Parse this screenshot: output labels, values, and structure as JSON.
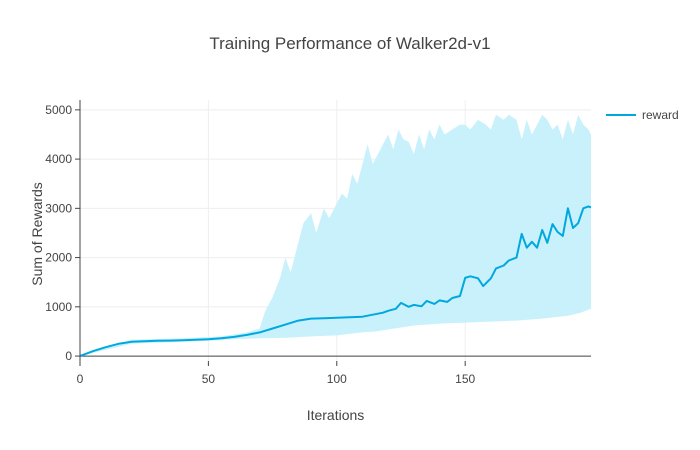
{
  "chart_data": {
    "type": "line",
    "title": "Training Performance of Walker2d-v1",
    "xlabel": "Iterations",
    "ylabel": "Sum of Rewards",
    "xlim": [
      0,
      199
    ],
    "ylim": [
      -100,
      5200
    ],
    "x_ticks": [
      0,
      50,
      100,
      150
    ],
    "y_ticks": [
      0,
      1000,
      2000,
      3000,
      4000,
      5000
    ],
    "x_tick_labels": [
      "0",
      "50",
      "100",
      "150"
    ],
    "y_tick_labels": [
      "0",
      "1000",
      "2000",
      "3000",
      "4000",
      "5000"
    ],
    "grid": true,
    "legend_position": "top-right",
    "series": [
      {
        "name": "reward",
        "color": "#00A8E0",
        "band_color": "#C9F1FB",
        "points": [
          [
            0,
            0
          ],
          [
            5,
            100
          ],
          [
            10,
            180
          ],
          [
            15,
            250
          ],
          [
            20,
            290
          ],
          [
            25,
            300
          ],
          [
            30,
            310
          ],
          [
            35,
            315
          ],
          [
            40,
            320
          ],
          [
            45,
            330
          ],
          [
            50,
            340
          ],
          [
            55,
            360
          ],
          [
            60,
            390
          ],
          [
            65,
            430
          ],
          [
            70,
            480
          ],
          [
            75,
            560
          ],
          [
            80,
            640
          ],
          [
            85,
            720
          ],
          [
            90,
            760
          ],
          [
            95,
            770
          ],
          [
            100,
            780
          ],
          [
            105,
            790
          ],
          [
            110,
            800
          ],
          [
            112,
            820
          ],
          [
            115,
            850
          ],
          [
            118,
            880
          ],
          [
            120,
            920
          ],
          [
            123,
            960
          ],
          [
            125,
            1080
          ],
          [
            128,
            1000
          ],
          [
            130,
            1040
          ],
          [
            133,
            1010
          ],
          [
            135,
            1120
          ],
          [
            138,
            1060
          ],
          [
            140,
            1130
          ],
          [
            143,
            1100
          ],
          [
            145,
            1180
          ],
          [
            148,
            1220
          ],
          [
            150,
            1590
          ],
          [
            152,
            1620
          ],
          [
            155,
            1580
          ],
          [
            157,
            1420
          ],
          [
            160,
            1580
          ],
          [
            162,
            1780
          ],
          [
            165,
            1840
          ],
          [
            167,
            1940
          ],
          [
            170,
            2000
          ],
          [
            172,
            2480
          ],
          [
            174,
            2200
          ],
          [
            176,
            2320
          ],
          [
            178,
            2200
          ],
          [
            180,
            2560
          ],
          [
            182,
            2300
          ],
          [
            184,
            2680
          ],
          [
            186,
            2520
          ],
          [
            188,
            2440
          ],
          [
            190,
            3000
          ],
          [
            192,
            2600
          ],
          [
            194,
            2700
          ],
          [
            196,
            3000
          ],
          [
            198,
            3040
          ],
          [
            199,
            3020
          ]
        ],
        "band_upper": [
          [
            0,
            30
          ],
          [
            20,
            330
          ],
          [
            40,
            360
          ],
          [
            55,
            400
          ],
          [
            60,
            440
          ],
          [
            65,
            480
          ],
          [
            70,
            560
          ],
          [
            72,
            900
          ],
          [
            75,
            1200
          ],
          [
            78,
            1600
          ],
          [
            80,
            2000
          ],
          [
            82,
            1700
          ],
          [
            85,
            2300
          ],
          [
            87,
            2700
          ],
          [
            90,
            2900
          ],
          [
            92,
            2500
          ],
          [
            95,
            3000
          ],
          [
            97,
            2800
          ],
          [
            100,
            3100
          ],
          [
            102,
            3300
          ],
          [
            104,
            3200
          ],
          [
            106,
            3700
          ],
          [
            108,
            3500
          ],
          [
            110,
            3900
          ],
          [
            112,
            4300
          ],
          [
            114,
            3900
          ],
          [
            116,
            4100
          ],
          [
            118,
            4300
          ],
          [
            120,
            4500
          ],
          [
            122,
            4200
          ],
          [
            124,
            4600
          ],
          [
            126,
            4400
          ],
          [
            128,
            4350
          ],
          [
            130,
            4100
          ],
          [
            132,
            4500
          ],
          [
            134,
            4200
          ],
          [
            136,
            4600
          ],
          [
            138,
            4400
          ],
          [
            140,
            4700
          ],
          [
            142,
            4500
          ],
          [
            145,
            4600
          ],
          [
            148,
            4700
          ],
          [
            150,
            4700
          ],
          [
            152,
            4600
          ],
          [
            155,
            4800
          ],
          [
            158,
            4700
          ],
          [
            160,
            4600
          ],
          [
            162,
            4900
          ],
          [
            165,
            4800
          ],
          [
            167,
            4900
          ],
          [
            170,
            4800
          ],
          [
            172,
            4400
          ],
          [
            174,
            4800
          ],
          [
            176,
            4500
          ],
          [
            178,
            4700
          ],
          [
            180,
            4900
          ],
          [
            182,
            4800
          ],
          [
            184,
            4600
          ],
          [
            186,
            4700
          ],
          [
            188,
            4400
          ],
          [
            190,
            4800
          ],
          [
            192,
            4500
          ],
          [
            194,
            4900
          ],
          [
            196,
            4700
          ],
          [
            198,
            4600
          ],
          [
            199,
            4500
          ]
        ],
        "band_lower": [
          [
            0,
            0
          ],
          [
            20,
            250
          ],
          [
            40,
            290
          ],
          [
            55,
            320
          ],
          [
            60,
            340
          ],
          [
            70,
            360
          ],
          [
            80,
            370
          ],
          [
            90,
            400
          ],
          [
            100,
            420
          ],
          [
            110,
            480
          ],
          [
            115,
            500
          ],
          [
            120,
            540
          ],
          [
            125,
            580
          ],
          [
            130,
            620
          ],
          [
            135,
            640
          ],
          [
            140,
            660
          ],
          [
            145,
            670
          ],
          [
            150,
            680
          ],
          [
            160,
            700
          ],
          [
            170,
            720
          ],
          [
            180,
            760
          ],
          [
            190,
            820
          ],
          [
            195,
            880
          ],
          [
            199,
            960
          ]
        ]
      }
    ]
  }
}
